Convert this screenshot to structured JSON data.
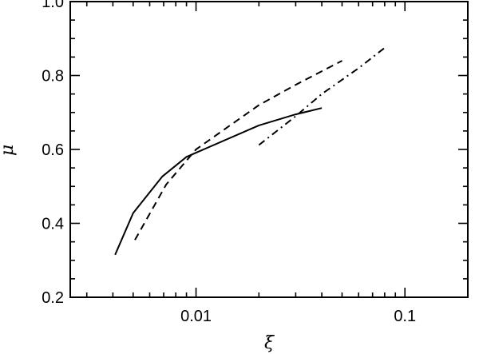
{
  "chart_data": {
    "type": "line",
    "title": "",
    "xlabel": "ξ",
    "ylabel": "μ",
    "xscale": "log",
    "xlim": [
      0.0025,
      0.2
    ],
    "ylim": [
      0.2,
      1.0
    ],
    "xticks": [
      {
        "value": 0.01,
        "label": "0.01"
      },
      {
        "value": 0.1,
        "label": "0.1"
      }
    ],
    "yticks": [
      {
        "value": 0.2,
        "label": "0.2"
      },
      {
        "value": 0.4,
        "label": "0.4"
      },
      {
        "value": 0.6,
        "label": "0.6"
      },
      {
        "value": 0.8,
        "label": "0.8"
      },
      {
        "value": 1.0,
        "label": "1.0"
      }
    ],
    "grid": false,
    "series": [
      {
        "linestyle": "solid",
        "x": [
          0.0041,
          0.005,
          0.0069,
          0.009,
          0.02,
          0.03,
          0.04
        ],
        "y": [
          0.315,
          0.428,
          0.527,
          0.58,
          0.665,
          0.695,
          0.712
        ]
      },
      {
        "linestyle": "dashed",
        "x": [
          0.0051,
          0.0072,
          0.01,
          0.02,
          0.03,
          0.05
        ],
        "y": [
          0.355,
          0.505,
          0.6,
          0.72,
          0.775,
          0.84
        ]
      },
      {
        "linestyle": "dashdot",
        "x": [
          0.02,
          0.03,
          0.04,
          0.06,
          0.08
        ],
        "y": [
          0.612,
          0.69,
          0.75,
          0.82,
          0.875
        ]
      }
    ]
  }
}
